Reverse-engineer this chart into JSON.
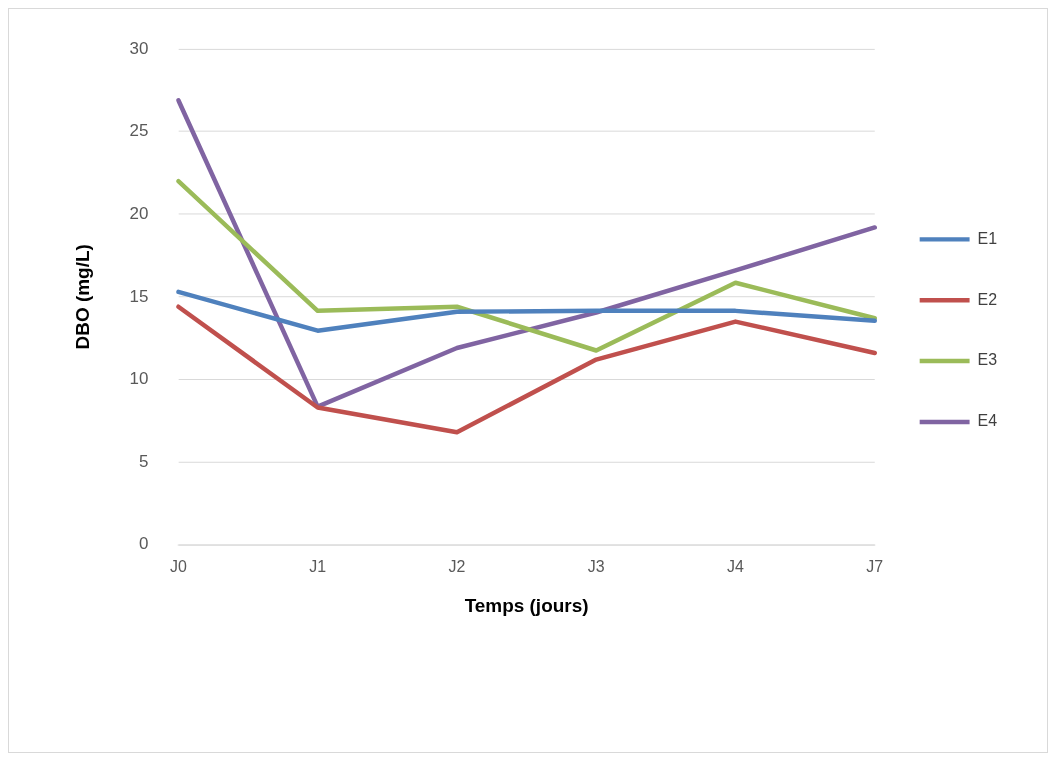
{
  "chart_data": {
    "type": "line",
    "xlabel": "Temps (jours)",
    "ylabel": "DBO (mg/L)",
    "categories": [
      "J0",
      "J1",
      "J2",
      "J3",
      "J4",
      "J7"
    ],
    "series": [
      {
        "name": "E1",
        "color": "#4f81bd",
        "values": [
          15.3,
          12.95,
          14.1,
          14.15,
          14.15,
          13.55
        ]
      },
      {
        "name": "E2",
        "color": "#c0504d",
        "values": [
          14.4,
          8.3,
          6.8,
          11.2,
          13.5,
          11.6
        ]
      },
      {
        "name": "E3",
        "color": "#9bbb59",
        "values": [
          22.0,
          14.15,
          14.4,
          11.75,
          15.85,
          13.7
        ]
      },
      {
        "name": "E4",
        "color": "#8064a2",
        "values": [
          26.9,
          8.35,
          11.9,
          14.05,
          16.6,
          19.2
        ]
      }
    ],
    "ylim": [
      0,
      30
    ],
    "yticks": [
      0,
      5,
      10,
      15,
      20,
      25,
      30
    ],
    "grid": "y",
    "legend": "right",
    "marker": "none",
    "line_style": "solid"
  }
}
